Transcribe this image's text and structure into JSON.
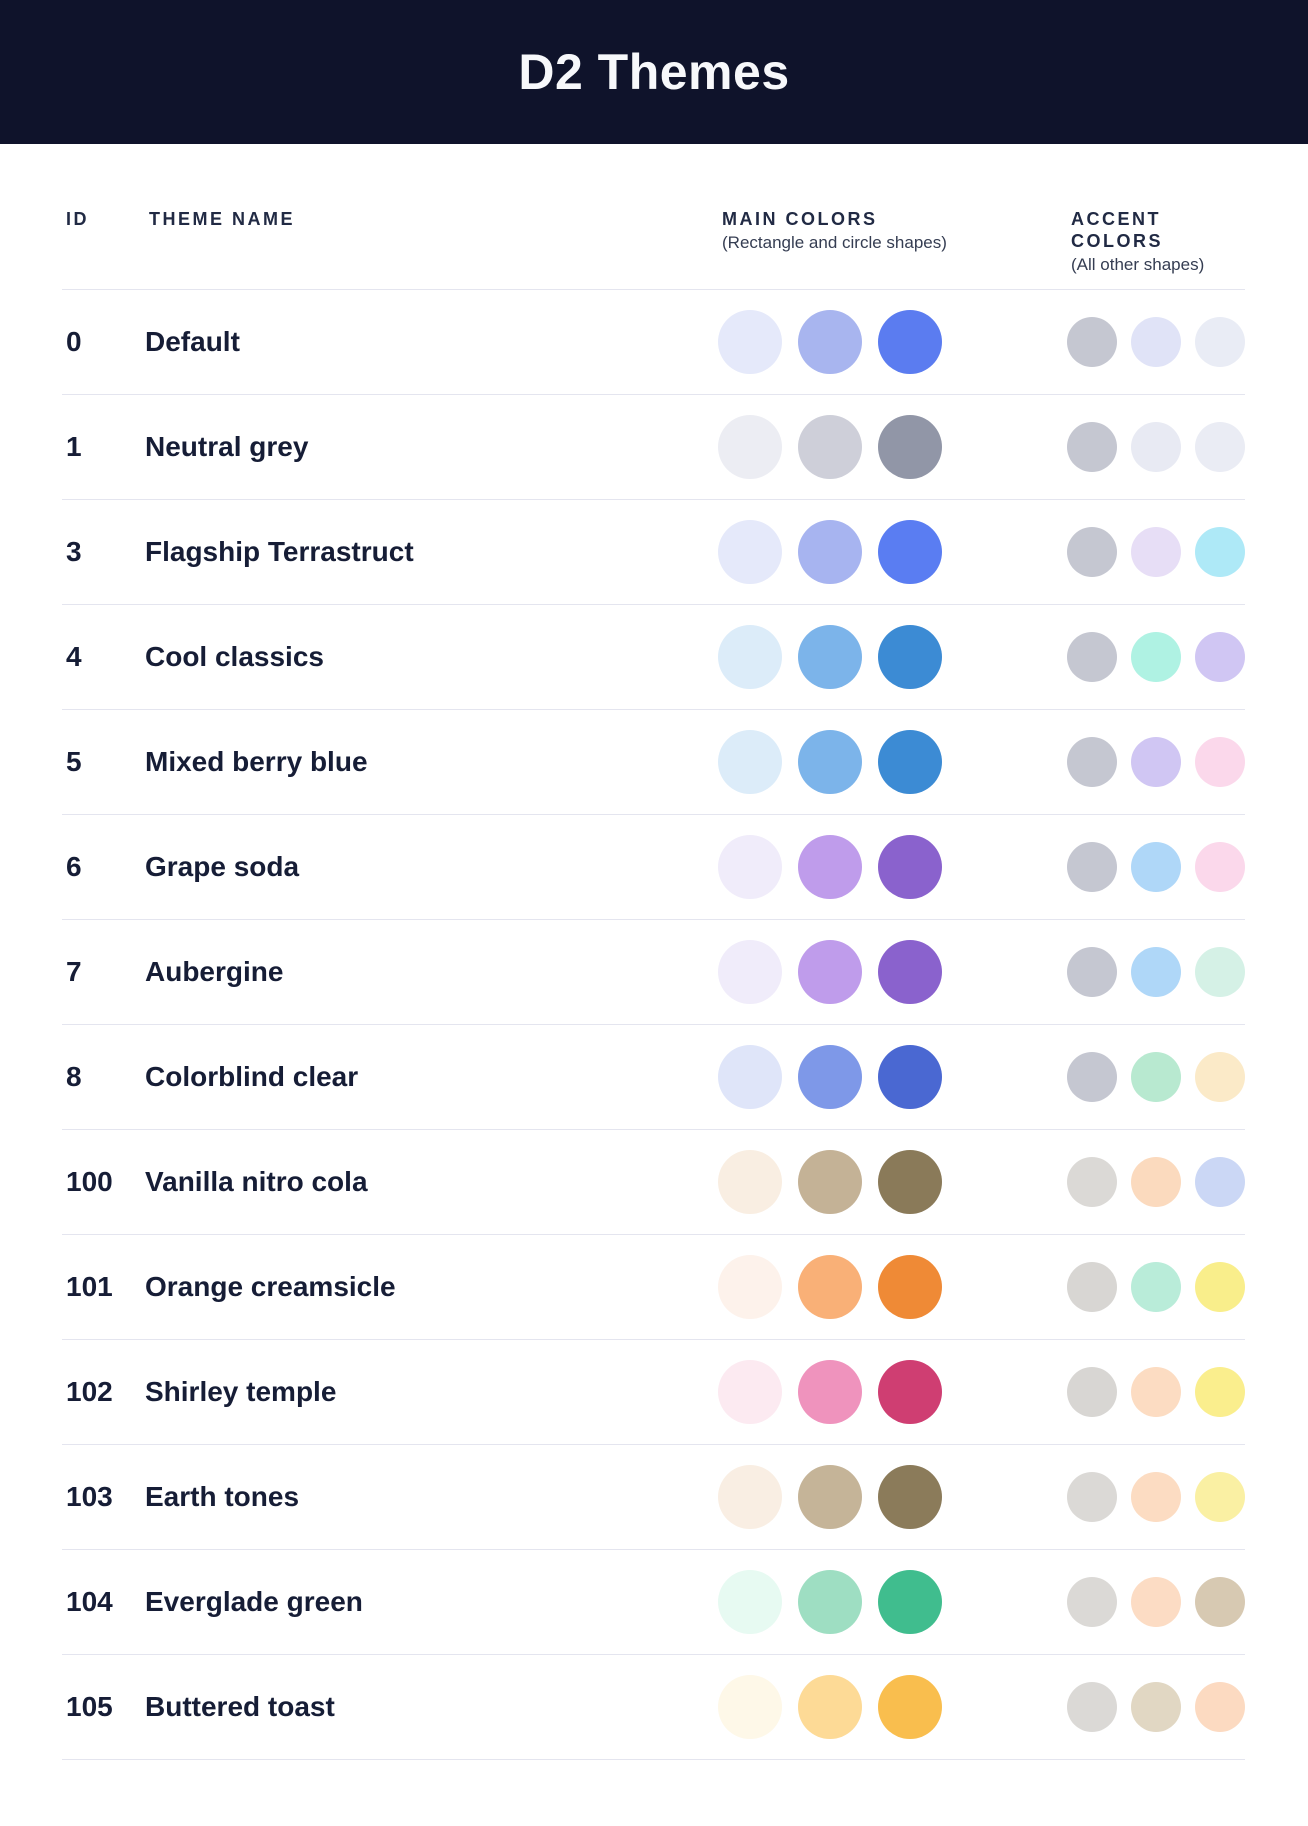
{
  "header": {
    "title": "D2 Themes"
  },
  "table": {
    "columns": [
      {
        "label": "ID",
        "caption": ""
      },
      {
        "label": "THEME NAME",
        "caption": ""
      },
      {
        "label": "MAIN COLORS",
        "caption": "(Rectangle and circle shapes)"
      },
      {
        "label": "ACCENT COLORS",
        "caption": "(All other shapes)"
      }
    ],
    "rows": [
      {
        "id": "0",
        "name": "Default",
        "main": [
          "#E5E9FA",
          "#A8B5EF",
          "#5B7CF0"
        ],
        "accent": [
          "#C5C7D1",
          "#E0E3F7",
          "#E9ECF5"
        ]
      },
      {
        "id": "1",
        "name": "Neutral grey",
        "main": [
          "#ECEDF3",
          "#CECFD9",
          "#9196A7"
        ],
        "accent": [
          "#C5C7D1",
          "#E8EAF3",
          "#EAECF4"
        ]
      },
      {
        "id": "3",
        "name": "Flagship Terrastruct",
        "main": [
          "#E5E9FA",
          "#A7B4F0",
          "#5A7DF2"
        ],
        "accent": [
          "#C5C7D1",
          "#E7DEF6",
          "#AEE9F7"
        ]
      },
      {
        "id": "4",
        "name": "Cool classics",
        "main": [
          "#DCECF9",
          "#7CB4EA",
          "#3C8BD4"
        ],
        "accent": [
          "#C5C7D1",
          "#AFF2E3",
          "#D0C6F3"
        ]
      },
      {
        "id": "5",
        "name": "Mixed berry blue",
        "main": [
          "#DCECF9",
          "#7CB4EA",
          "#3C8BD4"
        ],
        "accent": [
          "#C5C7D1",
          "#D0C6F3",
          "#FBD8EB"
        ]
      },
      {
        "id": "6",
        "name": "Grape soda",
        "main": [
          "#F0ECFA",
          "#BF9CEB",
          "#8A62CD"
        ],
        "accent": [
          "#C5C7D1",
          "#AFD7F8",
          "#FBD8EB"
        ]
      },
      {
        "id": "7",
        "name": "Aubergine",
        "main": [
          "#F0ECFA",
          "#BF9CEB",
          "#8A62CD"
        ],
        "accent": [
          "#C5C7D1",
          "#AFD7F8",
          "#D5F1E6"
        ]
      },
      {
        "id": "8",
        "name": "Colorblind clear",
        "main": [
          "#DFE5F9",
          "#7E98E8",
          "#4A68D2"
        ],
        "accent": [
          "#C5C7D1",
          "#B8E9D0",
          "#FBEAC8"
        ]
      },
      {
        "id": "100",
        "name": "Vanilla nitro cola",
        "main": [
          "#F9EEE2",
          "#C4B296",
          "#8A7A59"
        ],
        "accent": [
          "#DBD9D6",
          "#FBDABE",
          "#CBD7F5"
        ]
      },
      {
        "id": "101",
        "name": "Orange creamsicle",
        "main": [
          "#FDF2EB",
          "#F9B077",
          "#EF8A36"
        ],
        "accent": [
          "#D8D6D3",
          "#B9ECD9",
          "#F9EE8B"
        ]
      },
      {
        "id": "102",
        "name": "Shirley temple",
        "main": [
          "#FCEAF1",
          "#EF93BD",
          "#CF3E72"
        ],
        "accent": [
          "#D8D6D3",
          "#FCDCC2",
          "#FAEE8D"
        ]
      },
      {
        "id": "103",
        "name": "Earth tones",
        "main": [
          "#F9EEE3",
          "#C5B498",
          "#8B7B5A"
        ],
        "accent": [
          "#DBD9D6",
          "#FCDCC2",
          "#FAF0A3"
        ]
      },
      {
        "id": "104",
        "name": "Everglade green",
        "main": [
          "#E7FAF2",
          "#9EDEC2",
          "#40BD8E"
        ],
        "accent": [
          "#DBD9D6",
          "#FCDCC4",
          "#D7C9B2"
        ]
      },
      {
        "id": "105",
        "name": "Buttered toast",
        "main": [
          "#FEF8E8",
          "#FDDA96",
          "#F9BE4E"
        ],
        "accent": [
          "#DBD9D6",
          "#E1D7C3",
          "#FCDAC1"
        ]
      }
    ]
  },
  "theme": {
    "header_bg": "#0F132B",
    "title_color": "#F7F8FB",
    "text_color": "#161D36",
    "heading_color": "#212A44",
    "caption_color": "#353D52",
    "divider_color": "#E4E5EF",
    "page_bg": "#FFFFFF"
  }
}
